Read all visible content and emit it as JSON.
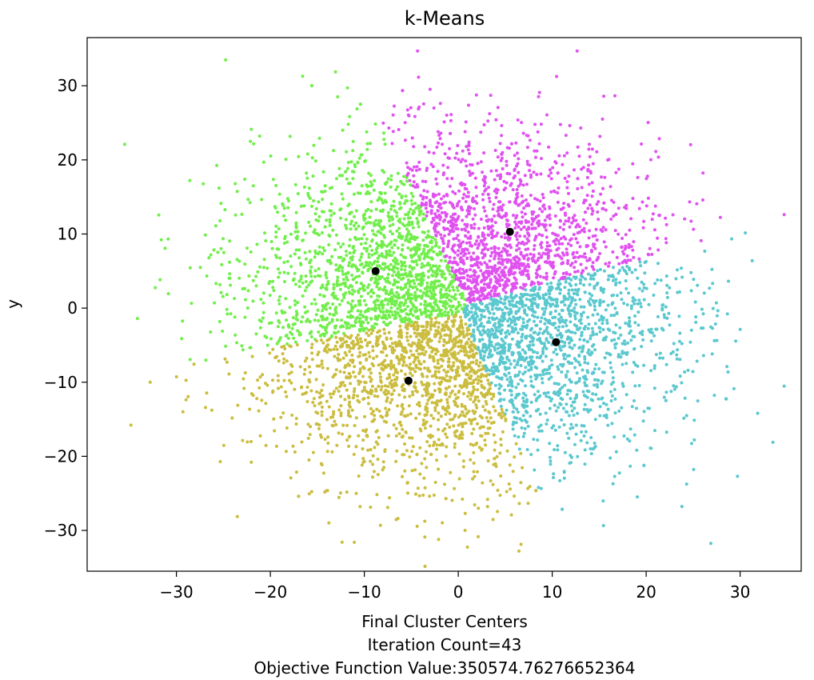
{
  "chart_data": {
    "type": "scatter",
    "title": "k-Means",
    "xlabel": "Final Cluster Centers\nIteration Count=43\nObjective Function Value:350574.76276652364",
    "ylabel": "y",
    "xlim": [
      -39.5,
      36.5
    ],
    "ylim": [
      -35.5,
      36.5
    ],
    "xticks": [
      -30,
      -20,
      -10,
      0,
      10,
      20,
      30
    ],
    "yticks": [
      -30,
      -20,
      -10,
      0,
      10,
      20,
      30
    ],
    "tick_labels": {
      "x": [
        "−30",
        "−20",
        "−10",
        "0",
        "10",
        "20",
        "30"
      ],
      "y": [
        "−30",
        "−20",
        "−10",
        "0",
        "10",
        "20",
        "30"
      ]
    },
    "grid": false,
    "legend": "none",
    "centers": [
      {
        "x": 5.5,
        "y": 10.3
      },
      {
        "x": -8.8,
        "y": 5.0
      },
      {
        "x": -5.3,
        "y": -9.8
      },
      {
        "x": 10.4,
        "y": -4.6
      }
    ],
    "clusters": [
      {
        "color": "#e052f0",
        "center_index": 0
      },
      {
        "color": "#72ee4c",
        "center_index": 1
      },
      {
        "color": "#cbbd3f",
        "center_index": 2
      },
      {
        "color": "#5bc8cf",
        "center_index": 3
      }
    ],
    "point_count": 6000,
    "point_spread_sd": 10.5,
    "point_radius": 2.0
  }
}
